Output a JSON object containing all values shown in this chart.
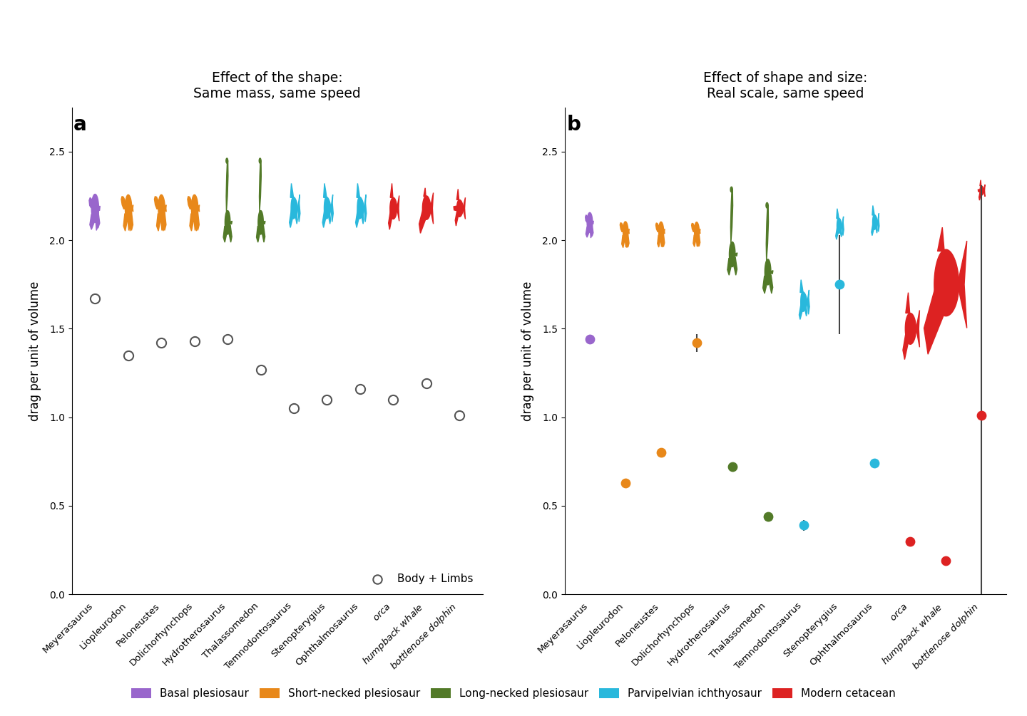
{
  "title_a": "Effect of the shape:\nSame mass, same speed",
  "title_b": "Effect of shape and size:\nReal scale, same speed",
  "ylabel": "drag per unit of volume",
  "species": [
    "Meyerasaurus",
    "Liopleurodon",
    "Peloneustes",
    "Dolichorhynchops",
    "Hydrotherosaurus",
    "Thalassomedon",
    "Temnodontosaurus",
    "Stenopterygius",
    "Ophthalmosaurus",
    "orca",
    "humpback whale",
    "bottlenose dolphin"
  ],
  "species_italic": [
    false,
    false,
    false,
    false,
    false,
    false,
    false,
    false,
    false,
    true,
    true,
    true
  ],
  "group": [
    "basal",
    "short",
    "short",
    "short",
    "long",
    "long",
    "ichthyo",
    "ichthyo",
    "ichthyo",
    "cetacean",
    "humpback",
    "dolphin"
  ],
  "color_basal": "#9966CC",
  "color_short": "#E8881A",
  "color_long": "#527A28",
  "color_ichthyo": "#29B8DC",
  "color_cetacean": "#DD2222",
  "dot_values_a": [
    1.67,
    1.35,
    1.42,
    1.43,
    1.44,
    1.27,
    1.05,
    1.1,
    1.16,
    1.1,
    1.19,
    1.01
  ],
  "dot_values_b": [
    1.44,
    0.63,
    0.8,
    1.42,
    0.72,
    0.44,
    0.39,
    1.75,
    0.74,
    0.3,
    0.19,
    1.01
  ],
  "dot_errors_b": [
    null,
    null,
    null,
    0.05,
    null,
    null,
    0.03,
    0.28,
    null,
    null,
    0.02,
    1.3
  ],
  "ylim": [
    0.0,
    2.75
  ],
  "yticks": [
    0.0,
    0.5,
    1.0,
    1.5,
    2.0,
    2.5
  ],
  "legend_colors": [
    "#9966CC",
    "#E8881A",
    "#527A28",
    "#29B8DC",
    "#DD2222"
  ],
  "legend_labels": [
    "Basal plesiosaur",
    "Short-necked plesiosaur",
    "Long-necked plesiosaur",
    "Parvipelvian ichthyosaur",
    "Modern cetacean"
  ],
  "sil_y_a": [
    2.18,
    2.18,
    2.18,
    2.18,
    2.1,
    2.1,
    2.18,
    2.18,
    2.18,
    2.18,
    2.18,
    2.18
  ],
  "sil_y_b": [
    2.1,
    2.05,
    2.05,
    2.05,
    1.92,
    1.82,
    1.65,
    2.08,
    2.1,
    1.5,
    1.75,
    2.28
  ],
  "size_b": [
    0.7,
    0.72,
    0.7,
    0.68,
    1.05,
    1.08,
    0.9,
    0.7,
    0.68,
    1.45,
    2.8,
    0.55
  ]
}
